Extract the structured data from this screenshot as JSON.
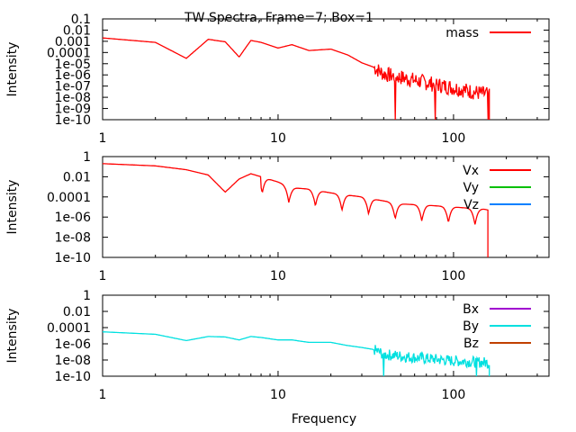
{
  "title": "TW Spectra, Frame=7; Box=1",
  "xlabel": "Frequency",
  "chart_data": [
    {
      "type": "line",
      "ylabel": "Intensity",
      "x_scale": "log",
      "y_scale": "log",
      "xlim": [
        1,
        350
      ],
      "ylim": [
        1e-10,
        0.1
      ],
      "grid": false,
      "legend_position": "top-right",
      "x_ticks": [
        "1",
        "10",
        "100"
      ],
      "y_ticks": [
        "0.1",
        "0.01",
        "0.001",
        "0.0001",
        "1e-05",
        "1e-06",
        "1e-07",
        "1e-08",
        "1e-09",
        "1e-10"
      ],
      "series": [
        {
          "name": "mass",
          "color": "#ff0000",
          "x": [
            1,
            2,
            3,
            4,
            5,
            6,
            7,
            8,
            10,
            12,
            15,
            20,
            25,
            30,
            35,
            40,
            50,
            70,
            100,
            130,
            150,
            160
          ],
          "y": [
            0.002,
            0.0008,
            3e-05,
            0.0015,
            0.0009,
            4e-05,
            0.0012,
            0.0008,
            0.00025,
            0.0005,
            0.00015,
            0.0002,
            6e-05,
            1.2e-05,
            5e-06,
            1.2e-06,
            6e-07,
            2e-07,
            7e-08,
            3e-08,
            2e-08,
            2e-08
          ],
          "noise_from_x": 35
        }
      ]
    },
    {
      "type": "line",
      "ylabel": "Intensity",
      "x_scale": "log",
      "y_scale": "log",
      "xlim": [
        1,
        350
      ],
      "ylim": [
        1e-10,
        1
      ],
      "grid": false,
      "legend_position": "top-right",
      "x_ticks": [
        "1",
        "10",
        "100"
      ],
      "y_ticks": [
        "1",
        "0.01",
        "0.0001",
        "1e-06",
        "1e-08",
        "1e-10"
      ],
      "series": [
        {
          "name": "Vx",
          "color": "#ff0000",
          "x": [
            1,
            2,
            3,
            4,
            5,
            6,
            7,
            8,
            10,
            12,
            15,
            20,
            25,
            30,
            35,
            40,
            50,
            70,
            100,
            130,
            150,
            157
          ],
          "y": [
            0.2,
            0.12,
            0.05,
            0.015,
            0.0003,
            0.006,
            0.02,
            0.01,
            0.003,
            0.0008,
            0.0006,
            0.00025,
            0.00015,
            0.0001,
            6e-05,
            4e-05,
            2e-05,
            1.5e-05,
            1e-05,
            7e-06,
            6e-06,
            5e-06
          ],
          "oscillate_from_x": 8
        },
        {
          "name": "Vy",
          "color": "#00c000",
          "x": [],
          "y": []
        },
        {
          "name": "Vz",
          "color": "#0080ff",
          "x": [],
          "y": []
        }
      ]
    },
    {
      "type": "line",
      "ylabel": "Intensity",
      "x_scale": "log",
      "y_scale": "log",
      "xlim": [
        1,
        350
      ],
      "ylim": [
        1e-10,
        1
      ],
      "grid": false,
      "legend_position": "top-right",
      "x_ticks": [
        "1",
        "10",
        "100"
      ],
      "y_ticks": [
        "1",
        "0.01",
        "0.0001",
        "1e-06",
        "1e-08",
        "1e-10"
      ],
      "series": [
        {
          "name": "Bx",
          "color": "#a000d0",
          "x": [],
          "y": []
        },
        {
          "name": "By",
          "color": "#00e0e0",
          "x": [
            1,
            2,
            3,
            4,
            5,
            6,
            7,
            8,
            10,
            12,
            15,
            20,
            25,
            30,
            35,
            40,
            50,
            70,
            100,
            130,
            150,
            160
          ],
          "y": [
            3e-05,
            1.5e-05,
            2.5e-06,
            8e-06,
            7e-06,
            3e-06,
            8e-06,
            6e-06,
            3e-06,
            3e-06,
            1.5e-06,
            1.5e-06,
            6e-07,
            3.5e-07,
            2e-07,
            5e-08,
            3e-08,
            1.5e-08,
            8e-09,
            6e-09,
            5e-09,
            4e-09
          ],
          "noise_from_x": 35
        },
        {
          "name": "Bz",
          "color": "#c04000",
          "x": [],
          "y": []
        }
      ]
    }
  ]
}
